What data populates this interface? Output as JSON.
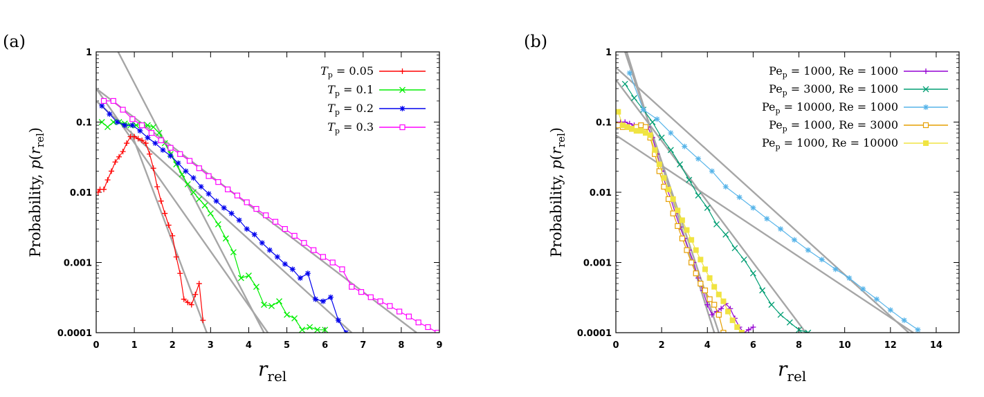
{
  "chart_data": [
    {
      "panel_label": "(a)",
      "type": "line",
      "yscale": "log",
      "xlim": [
        0,
        9
      ],
      "ylim": [
        0.0001,
        1
      ],
      "xticks": [
        "0",
        "1",
        "2",
        "3",
        "4",
        "5",
        "6",
        "7",
        "8",
        "9"
      ],
      "yticks": [
        "1",
        "0.1",
        "0.01",
        "0.001",
        "0.0001"
      ],
      "xlabel_main": "r",
      "xlabel_sub": "rel",
      "ylabel_main": "Probability, p(r",
      "ylabel_sub": "rel",
      "ylabel_close": ")",
      "legend_position": "top-right",
      "series": [
        {
          "name_var": "T",
          "name_sub": "p",
          "name_value": " = 0.05",
          "color": "#ff0000",
          "marker": "plus",
          "x": [
            0.05,
            0.1,
            0.2,
            0.3,
            0.4,
            0.5,
            0.6,
            0.7,
            0.8,
            0.9,
            1.0,
            1.1,
            1.2,
            1.3,
            1.4,
            1.5,
            1.6,
            1.7,
            1.8,
            1.9,
            2.0,
            2.1,
            2.2,
            2.3,
            2.4,
            2.5,
            2.6,
            2.7,
            2.8
          ],
          "y": [
            0.01,
            0.011,
            0.011,
            0.015,
            0.02,
            0.027,
            0.032,
            0.038,
            0.05,
            0.062,
            0.062,
            0.058,
            0.055,
            0.05,
            0.035,
            0.022,
            0.012,
            0.0075,
            0.005,
            0.0034,
            0.0024,
            0.0012,
            0.0007,
            0.0003,
            0.00027,
            0.00025,
            0.00035,
            0.0005,
            0.00015
          ]
        },
        {
          "name_var": "T",
          "name_sub": "p",
          "name_value": " = 0.1",
          "color": "#00ee00",
          "marker": "cross",
          "x": [
            0.15,
            0.3,
            0.45,
            0.6,
            0.75,
            0.9,
            1.05,
            1.2,
            1.35,
            1.5,
            1.65,
            1.8,
            1.95,
            2.1,
            2.25,
            2.4,
            2.55,
            2.7,
            2.85,
            3.0,
            3.2,
            3.4,
            3.6,
            3.8,
            4.0,
            4.2,
            4.4,
            4.6,
            4.8,
            5.0,
            5.2,
            5.4,
            5.6,
            5.8,
            6.0
          ],
          "y": [
            0.1,
            0.085,
            0.1,
            0.1,
            0.095,
            0.09,
            0.09,
            0.092,
            0.09,
            0.085,
            0.07,
            0.05,
            0.035,
            0.025,
            0.018,
            0.013,
            0.01,
            0.008,
            0.0065,
            0.005,
            0.0035,
            0.0022,
            0.0014,
            0.0006,
            0.00065,
            0.00045,
            0.00025,
            0.00024,
            0.00028,
            0.00018,
            0.00016,
            0.00011,
            0.00012,
            0.00011,
            0.00011
          ]
        },
        {
          "name_var": "T",
          "name_sub": "p",
          "name_value": " = 0.2",
          "color": "#0000ee",
          "marker": "star",
          "x": [
            0.15,
            0.35,
            0.55,
            0.75,
            0.95,
            1.15,
            1.35,
            1.55,
            1.75,
            1.95,
            2.15,
            2.35,
            2.55,
            2.75,
            2.95,
            3.15,
            3.35,
            3.55,
            3.75,
            3.95,
            4.15,
            4.35,
            4.55,
            4.75,
            4.95,
            5.15,
            5.35,
            5.55,
            5.75,
            5.95,
            6.15,
            6.35,
            6.55
          ],
          "y": [
            0.17,
            0.13,
            0.1,
            0.09,
            0.09,
            0.075,
            0.06,
            0.05,
            0.04,
            0.033,
            0.026,
            0.02,
            0.016,
            0.012,
            0.0095,
            0.0075,
            0.006,
            0.005,
            0.004,
            0.003,
            0.0025,
            0.0019,
            0.0015,
            0.0012,
            0.00095,
            0.0008,
            0.0006,
            0.0007,
            0.0003,
            0.00028,
            0.00032,
            0.00015,
            0.0001
          ]
        },
        {
          "name_var": "T",
          "name_sub": "p",
          "name_value": " = 0.3",
          "color": "#ff00ff",
          "marker": "square",
          "x": [
            0.2,
            0.45,
            0.7,
            0.95,
            1.2,
            1.45,
            1.7,
            1.95,
            2.2,
            2.45,
            2.7,
            2.95,
            3.2,
            3.45,
            3.7,
            3.95,
            4.2,
            4.45,
            4.7,
            4.95,
            5.2,
            5.45,
            5.7,
            5.95,
            6.2,
            6.45,
            6.7,
            6.95,
            7.2,
            7.45,
            7.7,
            7.95,
            8.2,
            8.45,
            8.7,
            8.95
          ],
          "y": [
            0.2,
            0.2,
            0.15,
            0.11,
            0.09,
            0.07,
            0.055,
            0.043,
            0.035,
            0.028,
            0.022,
            0.017,
            0.014,
            0.011,
            0.009,
            0.0072,
            0.0058,
            0.0047,
            0.0038,
            0.003,
            0.0024,
            0.0019,
            0.0015,
            0.0012,
            0.001,
            0.0008,
            0.00045,
            0.00038,
            0.00032,
            0.00028,
            0.00024,
            0.0002,
            0.00017,
            0.00014,
            0.00012,
            0.0001
          ]
        }
      ],
      "fit_lines": [
        {
          "x": [
            0.9,
            2.9
          ],
          "y": [
            0.075,
            0.0001
          ]
        },
        {
          "x": [
            0.0,
            4.5
          ],
          "y": [
            0.3,
            0.0001
          ]
        },
        {
          "x": [
            0.0,
            6.7
          ],
          "y": [
            0.2,
            0.0001
          ]
        },
        {
          "x": [
            0.0,
            8.4
          ],
          "y": [
            0.3,
            0.0001
          ]
        },
        {
          "x": [
            0.5,
            4.4
          ],
          "y": [
            1.2,
            0.0001
          ]
        }
      ]
    },
    {
      "panel_label": "(b)",
      "type": "line",
      "yscale": "log",
      "xlim": [
        0,
        15
      ],
      "ylim": [
        0.0001,
        1
      ],
      "xticks": [
        "0",
        "2",
        "4",
        "6",
        "8",
        "10",
        "12",
        "14"
      ],
      "xtick_values": [
        0,
        2,
        4,
        6,
        8,
        10,
        12,
        14
      ],
      "yticks": [
        "1",
        "0.1",
        "0.01",
        "0.001",
        "0.0001"
      ],
      "xlabel_main": "r",
      "xlabel_sub": "rel",
      "ylabel_main": "Probability, p(r",
      "ylabel_sub": "rel",
      "ylabel_close": ")",
      "legend_position": "top-right",
      "series": [
        {
          "name": "Pe_p = 1000, Re = 1000",
          "name_html": "Pe",
          "name_sub": "p",
          "name_value": " = 1000, Re = 1000",
          "color": "#9400d3",
          "marker": "plus",
          "x": [
            0.2,
            0.4,
            0.6,
            0.8,
            1.0,
            1.2,
            1.4,
            1.6,
            1.8,
            2.0,
            2.2,
            2.4,
            2.6,
            2.8,
            3.0,
            3.2,
            3.4,
            3.6,
            3.8,
            4.0,
            4.2,
            4.4,
            4.6,
            4.8,
            5.0,
            5.2,
            5.4,
            5.6,
            5.8,
            6.0
          ],
          "y": [
            0.1,
            0.1,
            0.095,
            0.09,
            0.09,
            0.09,
            0.085,
            0.06,
            0.035,
            0.02,
            0.012,
            0.008,
            0.005,
            0.0032,
            0.0022,
            0.0015,
            0.001,
            0.0006,
            0.0004,
            0.00025,
            0.00018,
            0.0002,
            0.00022,
            0.00026,
            0.00022,
            0.00016,
            0.00012,
            0.0001,
            0.00011,
            0.00012
          ]
        },
        {
          "name": "Pe_p = 3000, Re = 1000",
          "name_html": "Pe",
          "name_sub": "p",
          "name_value": " = 3000, Re = 1000",
          "color": "#009e73",
          "marker": "cross",
          "x": [
            0.4,
            0.8,
            1.2,
            1.6,
            2.0,
            2.4,
            2.8,
            3.2,
            3.6,
            4.0,
            4.4,
            4.8,
            5.2,
            5.6,
            6.0,
            6.4,
            6.8,
            7.2,
            7.6,
            8.0,
            8.4
          ],
          "y": [
            0.35,
            0.22,
            0.15,
            0.1,
            0.06,
            0.04,
            0.025,
            0.015,
            0.009,
            0.006,
            0.0035,
            0.0025,
            0.0016,
            0.0011,
            0.0007,
            0.0004,
            0.00025,
            0.00018,
            0.00014,
            0.00011,
            0.0001
          ]
        },
        {
          "name": "Pe_p = 10000, Re = 1000",
          "name_html": "Pe",
          "name_sub": "p",
          "name_value": " = 10000, Re = 1000",
          "color": "#56b4e9",
          "marker": "star",
          "x": [
            0.6,
            1.2,
            1.8,
            2.4,
            3.0,
            3.6,
            4.2,
            4.8,
            5.4,
            6.0,
            6.6,
            7.2,
            7.8,
            8.4,
            9.0,
            9.6,
            10.2,
            10.8,
            11.4,
            12.0,
            12.6,
            13.2
          ],
          "y": [
            0.5,
            0.15,
            0.11,
            0.07,
            0.045,
            0.03,
            0.02,
            0.012,
            0.0085,
            0.006,
            0.0042,
            0.003,
            0.0021,
            0.0015,
            0.0011,
            0.0008,
            0.0006,
            0.00042,
            0.0003,
            0.00021,
            0.00015,
            0.00011
          ]
        },
        {
          "name": "Pe_p = 1000, Re = 3000",
          "name_html": "Pe",
          "name_sub": "p",
          "name_value": " = 1000, Re = 3000",
          "color": "#e69f00",
          "marker": "square",
          "x": [
            0.1,
            0.3,
            0.5,
            0.7,
            0.9,
            1.1,
            1.3,
            1.5,
            1.7,
            1.9,
            2.1,
            2.3,
            2.5,
            2.7,
            2.9,
            3.1,
            3.3,
            3.5,
            3.7,
            3.9,
            4.1,
            4.3,
            4.5,
            4.7
          ],
          "y": [
            0.09,
            0.085,
            0.085,
            0.08,
            0.085,
            0.09,
            0.085,
            0.06,
            0.035,
            0.02,
            0.012,
            0.008,
            0.005,
            0.0033,
            0.0022,
            0.0015,
            0.001,
            0.0007,
            0.0005,
            0.0004,
            0.0003,
            0.00025,
            0.00018,
            0.0001
          ]
        },
        {
          "name": "Pe_p = 1000, Re = 10000",
          "name_html": "Pe",
          "name_sub": "p",
          "name_value": " = 1000, Re = 10000",
          "color": "#f0e442",
          "marker": "filled-square",
          "x": [
            0.1,
            0.3,
            0.5,
            0.7,
            0.9,
            1.1,
            1.3,
            1.5,
            1.7,
            1.9,
            2.1,
            2.3,
            2.5,
            2.7,
            2.9,
            3.1,
            3.3,
            3.5,
            3.7,
            3.9,
            4.1,
            4.3,
            4.5,
            4.7,
            4.9,
            5.1,
            5.3,
            5.5
          ],
          "y": [
            0.14,
            0.09,
            0.085,
            0.08,
            0.075,
            0.075,
            0.07,
            0.065,
            0.04,
            0.025,
            0.016,
            0.011,
            0.008,
            0.0055,
            0.004,
            0.0029,
            0.0021,
            0.0015,
            0.0011,
            0.0008,
            0.0006,
            0.00045,
            0.00035,
            0.00028,
            0.0002,
            0.00015,
            0.00012,
            0.0001
          ]
        }
      ],
      "fit_lines": [
        {
          "x": [
            0.4,
            4.3
          ],
          "y": [
            1.2,
            0.0001
          ]
        },
        {
          "x": [
            0.4,
            4.5
          ],
          "y": [
            1.0,
            0.0001
          ]
        },
        {
          "x": [
            0.0,
            8.3
          ],
          "y": [
            0.4,
            0.0001
          ]
        },
        {
          "x": [
            0.0,
            13.0
          ],
          "y": [
            0.065,
            0.0001
          ]
        },
        {
          "x": [
            0.0,
            12.8
          ],
          "y": [
            0.6,
            0.0001
          ]
        }
      ]
    }
  ]
}
